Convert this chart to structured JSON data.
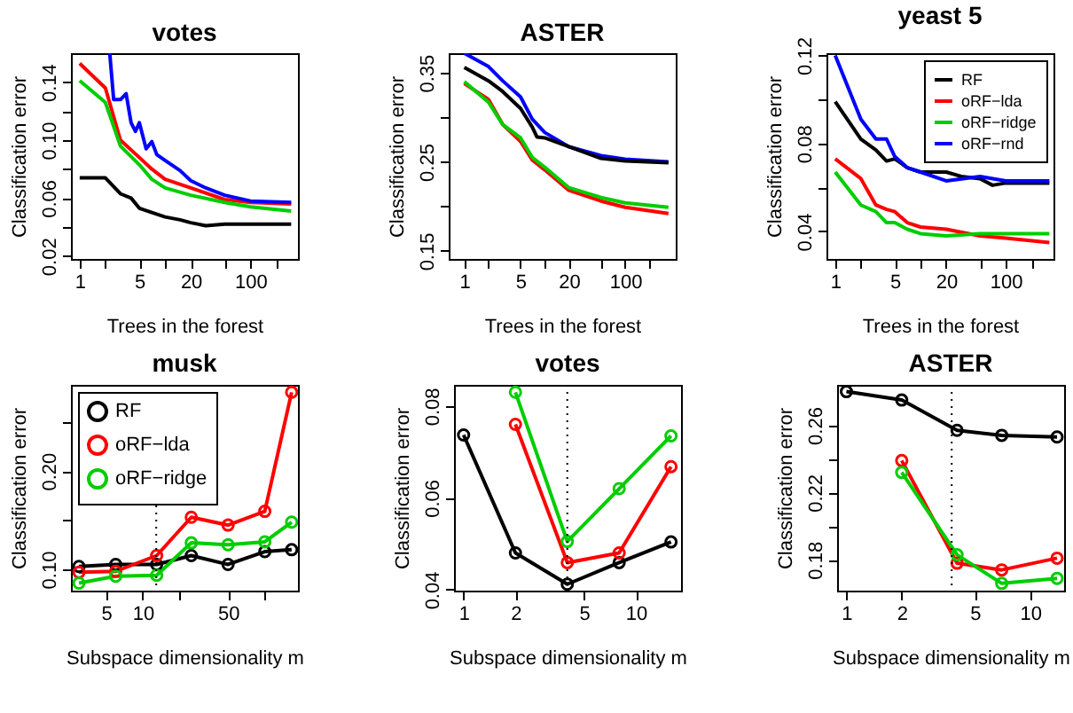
{
  "chart_data": [
    {
      "type": "line",
      "title": "votes",
      "xlabel": "Trees in the forest",
      "ylabel": "Classification error",
      "log": "x",
      "xlim": [
        0.79,
        360
      ],
      "ylim": [
        0.018,
        0.16
      ],
      "xticks": [
        1,
        {
          "value": 2,
          "label": null
        },
        5,
        {
          "value": 10,
          "label": null
        },
        20,
        {
          "value": 50,
          "label": null
        },
        100,
        {
          "value": 200,
          "label": null
        }
      ],
      "yticks": [
        0.02,
        {
          "value": 0.04,
          "label": null
        },
        0.06,
        {
          "value": 0.08,
          "label": null
        },
        {
          "value": 0.1,
          "label": "0.10"
        },
        {
          "value": 0.12,
          "label": null
        },
        0.14
      ],
      "legend": false,
      "grid": false,
      "marker": "none",
      "series": [
        {
          "color": "#000000",
          "x": [
            1,
            2,
            3,
            4,
            5,
            7,
            10,
            15,
            20,
            30,
            50,
            100,
            200,
            300
          ],
          "values": [
            0.074,
            0.074,
            0.063,
            0.06,
            0.053,
            0.05,
            0.047,
            0.045,
            0.043,
            0.041,
            0.042,
            0.042,
            0.042,
            0.042
          ]
        },
        {
          "color": "#ff0000",
          "x": [
            1,
            2,
            3,
            5,
            7,
            10,
            20,
            50,
            100,
            300
          ],
          "values": [
            0.153,
            0.136,
            0.1,
            0.088,
            0.08,
            0.073,
            0.067,
            0.059,
            0.057,
            0.056
          ]
        },
        {
          "color": "#00cd00",
          "x": [
            1,
            2,
            3,
            5,
            7,
            10,
            20,
            50,
            100,
            300
          ],
          "values": [
            0.141,
            0.126,
            0.096,
            0.083,
            0.073,
            0.067,
            0.062,
            0.057,
            0.054,
            0.051
          ]
        },
        {
          "color": "#0000ff",
          "x": [
            2.25,
            2.5,
            3,
            3.5,
            4,
            4.5,
            5,
            6,
            7,
            8,
            10,
            15,
            20,
            30,
            50,
            100,
            300
          ],
          "values": [
            0.16,
            0.128,
            0.128,
            0.132,
            0.112,
            0.106,
            0.112,
            0.094,
            0.099,
            0.09,
            0.086,
            0.079,
            0.072,
            0.067,
            0.062,
            0.058,
            0.057
          ]
        }
      ]
    },
    {
      "type": "line",
      "title": "ASTER",
      "xlabel": "Trees in the forest",
      "ylabel": "Classification error",
      "log": "x",
      "xlim": [
        0.64,
        425
      ],
      "ylim": [
        0.141,
        0.372
      ],
      "xticks": [
        1,
        {
          "value": 2,
          "label": null
        },
        5,
        {
          "value": 10,
          "label": null
        },
        20,
        {
          "value": 50,
          "label": null
        },
        100,
        {
          "value": 200,
          "label": null
        }
      ],
      "yticks": [
        0.15,
        {
          "value": 0.2,
          "label": null
        },
        0.25,
        {
          "value": 0.3,
          "label": null
        },
        0.35
      ],
      "legend": false,
      "grid": false,
      "marker": "none",
      "series": [
        {
          "color": "#0000ff",
          "x": [
            1,
            2,
            3,
            5,
            7,
            10,
            20,
            50,
            100,
            345
          ],
          "values": [
            0.372,
            0.357,
            0.341,
            0.323,
            0.298,
            0.283,
            0.267,
            0.257,
            0.253,
            0.25
          ]
        },
        {
          "color": "#000000",
          "x": [
            1,
            2,
            3,
            5,
            7,
            8,
            10,
            20,
            50,
            100,
            345
          ],
          "values": [
            0.356,
            0.341,
            0.329,
            0.31,
            0.289,
            0.278,
            0.277,
            0.267,
            0.254,
            0.251,
            0.249
          ]
        },
        {
          "color": "#ff0000",
          "x": [
            1,
            2,
            3,
            5,
            7,
            10,
            20,
            50,
            100,
            345
          ],
          "values": [
            0.338,
            0.32,
            0.292,
            0.273,
            0.252,
            0.241,
            0.218,
            0.206,
            0.199,
            0.192
          ]
        },
        {
          "color": "#00cd00",
          "x": [
            1,
            2,
            3,
            5,
            7,
            10,
            20,
            50,
            100,
            345
          ],
          "values": [
            0.34,
            0.317,
            0.292,
            0.277,
            0.255,
            0.244,
            0.221,
            0.21,
            0.204,
            0.199
          ]
        }
      ]
    },
    {
      "type": "line",
      "title": "yeast 5",
      "xlabel": "Trees in the forest",
      "ylabel": "Classification error",
      "log": "x",
      "xlim": [
        0.79,
        363
      ],
      "ylim": [
        0.0275,
        0.121
      ],
      "xticks": [
        1,
        {
          "value": 2,
          "label": null
        },
        5,
        {
          "value": 10,
          "label": null
        },
        20,
        {
          "value": 50,
          "label": null
        },
        100,
        {
          "value": 200,
          "label": null
        }
      ],
      "yticks": [
        0.04,
        {
          "value": 0.06,
          "label": null
        },
        0.08,
        {
          "value": 0.1,
          "label": null
        },
        0.12
      ],
      "legend": "top right",
      "grid": false,
      "marker": "none",
      "series": [
        {
          "name": "RF",
          "color": "#000000",
          "x": [
            1,
            2,
            3,
            4,
            5,
            7,
            10,
            20,
            30,
            50,
            70,
            100,
            325
          ],
          "values": [
            0.099,
            0.082,
            0.077,
            0.072,
            0.073,
            0.069,
            0.067,
            0.067,
            0.065,
            0.064,
            0.061,
            0.062,
            0.062
          ]
        },
        {
          "name": "oRF−lda",
          "color": "#ff0000",
          "x": [
            1,
            2,
            3,
            4,
            5,
            7,
            10,
            20,
            50,
            100,
            325
          ],
          "values": [
            0.073,
            0.064,
            0.052,
            0.05,
            0.049,
            0.044,
            0.042,
            0.041,
            0.038,
            0.037,
            0.035
          ]
        },
        {
          "name": "oRF−ridge",
          "color": "#00cd00",
          "x": [
            1,
            2,
            3,
            4,
            5,
            7,
            10,
            20,
            50,
            100,
            325
          ],
          "values": [
            0.067,
            0.052,
            0.049,
            0.044,
            0.044,
            0.041,
            0.039,
            0.038,
            0.039,
            0.039,
            0.039
          ]
        },
        {
          "name": "oRF−rnd",
          "color": "#0000ff",
          "x": [
            1,
            2,
            3,
            4,
            5,
            7,
            10,
            20,
            50,
            100,
            325
          ],
          "values": [
            0.12,
            0.091,
            0.082,
            0.082,
            0.074,
            0.069,
            0.067,
            0.063,
            0.065,
            0.063,
            0.063
          ]
        }
      ]
    },
    {
      "type": "line",
      "title": "musk",
      "xlabel": "Subspace dimensionality m",
      "ylabel": "Classification error",
      "log": "x",
      "xlim": [
        2.58,
        187
      ],
      "ylim": [
        0.0784,
        0.2875
      ],
      "xticks": [
        5,
        10,
        {
          "value": 20,
          "label": null
        },
        50,
        {
          "value": 100,
          "label": null
        }
      ],
      "yticks": [
        {
          "value": 0.1,
          "label": "0.10"
        },
        {
          "value": 0.15,
          "label": null
        },
        {
          "value": 0.2,
          "label": "0.20"
        },
        {
          "value": 0.25,
          "label": null
        }
      ],
      "legend": "top left",
      "grid": false,
      "marker": "circle",
      "ref_lines": [
        {
          "axis": "x",
          "value": 12.9,
          "line_style": "dotted",
          "color": "#000000"
        }
      ],
      "x": [
        3,
        6,
        13,
        25,
        50,
        100,
        166
      ],
      "series": [
        {
          "name": "RF",
          "color": "#000000",
          "values": [
            0.103,
            0.105,
            0.105,
            0.114,
            0.105,
            0.118,
            0.12
          ]
        },
        {
          "name": "oRF−lda",
          "color": "#ff0000",
          "values": [
            0.097,
            0.098,
            0.114,
            0.153,
            0.145,
            0.159,
            0.28
          ]
        },
        {
          "name": "oRF−ridge",
          "color": "#00cd00",
          "values": [
            0.086,
            0.093,
            0.094,
            0.127,
            0.125,
            0.128,
            0.148
          ]
        }
      ]
    },
    {
      "type": "line",
      "title": "votes",
      "xlabel": "Subspace dimensionality m",
      "ylabel": "Classification error",
      "log": "x",
      "xlim": [
        0.88,
        18.3
      ],
      "ylim": [
        0.0398,
        0.0846
      ],
      "xticks": [
        1,
        2,
        5,
        10
      ],
      "yticks": [
        0.04,
        0.06,
        0.08
      ],
      "legend": false,
      "grid": false,
      "marker": "circle",
      "ref_lines": [
        {
          "axis": "x",
          "value": 4,
          "line_style": "dotted",
          "color": "#000000"
        }
      ],
      "x": [
        1,
        2,
        4,
        8,
        16
      ],
      "series": [
        {
          "color": "#000000",
          "values": [
            0.0737,
            0.048,
            0.0412,
            0.0459,
            0.0504
          ]
        },
        {
          "color": "#ff0000",
          "values": [
            null,
            0.076,
            0.0459,
            0.048,
            0.0668
          ]
        },
        {
          "color": "#00cd00",
          "values": [
            null,
            0.083,
            0.0505,
            0.062,
            0.0735
          ]
        }
      ]
    },
    {
      "type": "line",
      "title": "ASTER",
      "xlabel": "Subspace dimensionality m",
      "ylabel": "Classification error",
      "log": "x",
      "xlim": [
        0.89,
        15.3
      ],
      "ylim": [
        0.1617,
        0.284
      ],
      "xticks": [
        1,
        2,
        5,
        10
      ],
      "yticks": [
        0.18,
        {
          "value": 0.2,
          "label": null
        },
        0.22,
        {
          "value": 0.24,
          "label": null
        },
        0.26
      ],
      "legend": false,
      "grid": false,
      "marker": "circle",
      "ref_lines": [
        {
          "axis": "x",
          "value": 3.74,
          "line_style": "dotted",
          "color": "#000000"
        }
      ],
      "x": [
        1,
        2,
        4,
        7,
        14
      ],
      "series": [
        {
          "color": "#000000",
          "values": [
            0.28,
            0.275,
            0.257,
            0.254,
            0.253
          ]
        },
        {
          "color": "#ff0000",
          "values": [
            null,
            0.239,
            0.178,
            0.174,
            0.181
          ]
        },
        {
          "color": "#00cd00",
          "values": [
            null,
            0.232,
            0.183,
            0.166,
            0.169
          ]
        }
      ]
    }
  ]
}
